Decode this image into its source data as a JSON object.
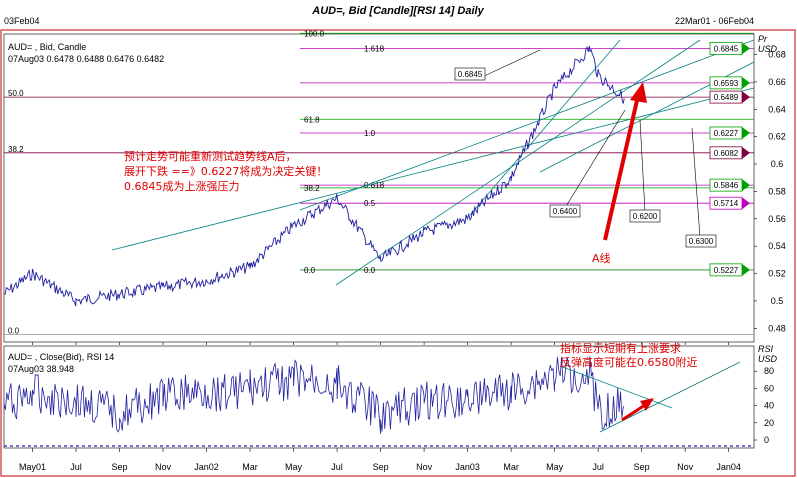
{
  "header": {
    "title": "AUD=, Bid [Candle][RSI 14] Daily",
    "date_left": "03Feb04",
    "date_right": "22Mar01 - 06Feb04"
  },
  "price_panel": {
    "legend": "AUD= , Bid, Candle",
    "ohlc": "07Aug03  0.6478  0.6488  0.6476  0.6482",
    "unit_line1": "Pr",
    "unit_line2": "USD",
    "y_ticks": [
      "0.68",
      "0.66",
      "0.64",
      "0.62",
      "0.6",
      "0.58",
      "0.56",
      "0.54",
      "0.52",
      "0.5",
      "0.48"
    ],
    "fib_left": [
      "100.0",
      "61.8",
      "38.2",
      "0.0"
    ],
    "fib_right": [
      "1.618",
      "1.0",
      "0.618",
      "0.5",
      "0.0"
    ],
    "outer_left": [
      "50.0",
      "38.2",
      "0.0"
    ],
    "level_boxes": [
      "0.6845",
      "0.6593",
      "0.6489",
      "0.6227",
      "0.6082",
      "0.5846",
      "0.5714",
      "0.5227"
    ],
    "callouts": [
      "0.6845",
      "0.6400",
      "0.6200",
      "0.6300"
    ],
    "annotation_lines": [
      "预计走势可能重新测试趋势线A后，",
      "展开下跌 ==》0.6227将成为决定关键！",
      "0.6845成为上涨强压力"
    ],
    "a_line_label": "A线"
  },
  "rsi_panel": {
    "legend": "AUD= , Close(Bid), RSI 14",
    "value": "07Aug03  38.948",
    "unit_line1": "RSI",
    "unit_line2": "USD",
    "y_ticks": [
      "80",
      "60",
      "40",
      "20",
      "0"
    ],
    "annotation_lines": [
      "指标显示短期有上涨要求",
      "反弹高度可能在0.6580附近"
    ]
  },
  "x_axis": {
    "labels": [
      "May01",
      "Jul",
      "Sep",
      "Nov",
      "Jan02",
      "Mar",
      "May",
      "Jul",
      "Sep",
      "Nov",
      "Jan03",
      "Mar",
      "May",
      "Jul",
      "Sep",
      "Nov",
      "Jan04"
    ]
  },
  "colors": {
    "series": "#2020a0",
    "trendline": "#008080",
    "fib_green": "#00a000",
    "fib_magenta": "#c000c0",
    "level_maroon": "#800040",
    "annotation_red": "#e00000",
    "frame_red": "#c00000"
  },
  "chart_data": [
    {
      "type": "line",
      "title": "AUD=, Bid [Candle] Daily",
      "ylabel": "USD",
      "ylim": [
        0.47,
        0.695
      ],
      "x": [
        "2001-03-22",
        "2001-05",
        "2001-07",
        "2001-09",
        "2001-11",
        "2002-01",
        "2002-03",
        "2002-05",
        "2002-07",
        "2002-09",
        "2002-11",
        "2003-01",
        "2003-03",
        "2003-05",
        "2003-06-20",
        "2003-07",
        "2003-08-07"
      ],
      "values": [
        0.505,
        0.52,
        0.5,
        0.505,
        0.51,
        0.515,
        0.525,
        0.555,
        0.575,
        0.53,
        0.55,
        0.56,
        0.59,
        0.655,
        0.685,
        0.665,
        0.648
      ],
      "horizontal_levels": [
        0.6845,
        0.6593,
        0.6489,
        0.6227,
        0.6082,
        0.5846,
        0.5714,
        0.5227
      ]
    },
    {
      "type": "line",
      "title": "AUD=, Close(Bid), RSI 14",
      "ylabel": "RSI",
      "ylim": [
        0,
        100
      ],
      "x": [
        "2001-03-22",
        "2001-05",
        "2001-07",
        "2001-09",
        "2001-11",
        "2002-01",
        "2002-03",
        "2002-05",
        "2002-07",
        "2002-09",
        "2002-11",
        "2003-01",
        "2003-03",
        "2003-05",
        "2003-06-20",
        "2003-07",
        "2003-08-07"
      ],
      "values": [
        40,
        55,
        45,
        30,
        50,
        55,
        60,
        70,
        65,
        30,
        45,
        50,
        55,
        75,
        80,
        35,
        38.948
      ]
    }
  ]
}
